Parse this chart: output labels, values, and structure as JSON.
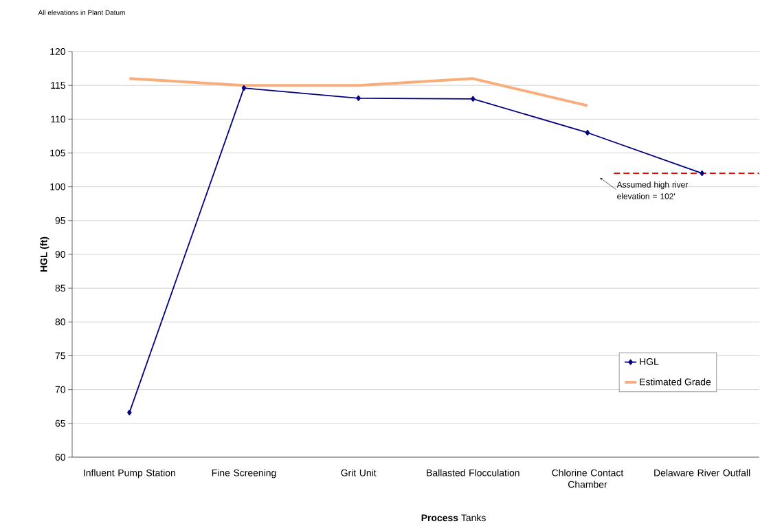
{
  "chart_data": {
    "type": "line",
    "xlabel": "**Process** Tanks",
    "ylabel": "HGL (ft)",
    "annotations": [
      "All elevations in Plant Datum"
    ],
    "categories": [
      "Influent Pump Station",
      "Fine Screening",
      "Grit Unit",
      "Ballasted Flocculation",
      "Chlorine Contact Chamber",
      "Delaware River Outfall"
    ],
    "series": [
      {
        "name": "HGL",
        "color": "#000080",
        "marker": "diamond",
        "values": [
          66.6,
          114.6,
          113.1,
          113.0,
          108.0,
          102.0
        ]
      },
      {
        "name": "Estimated Grade",
        "color": "#f9ad7c",
        "marker": "none",
        "values": [
          116,
          115,
          115,
          116,
          112,
          null
        ]
      }
    ],
    "ylim": [
      60,
      120
    ],
    "yticks": [
      60,
      65,
      70,
      75,
      80,
      85,
      90,
      95,
      100,
      105,
      110,
      115,
      120
    ],
    "grid": "y",
    "legend": "bottom right",
    "ref_lines": [
      {
        "axis": "y",
        "value": 102,
        "label": "Assumed high river elevation = 102'",
        "color": "#ff0000",
        "line_style": "dashed"
      }
    ]
  }
}
